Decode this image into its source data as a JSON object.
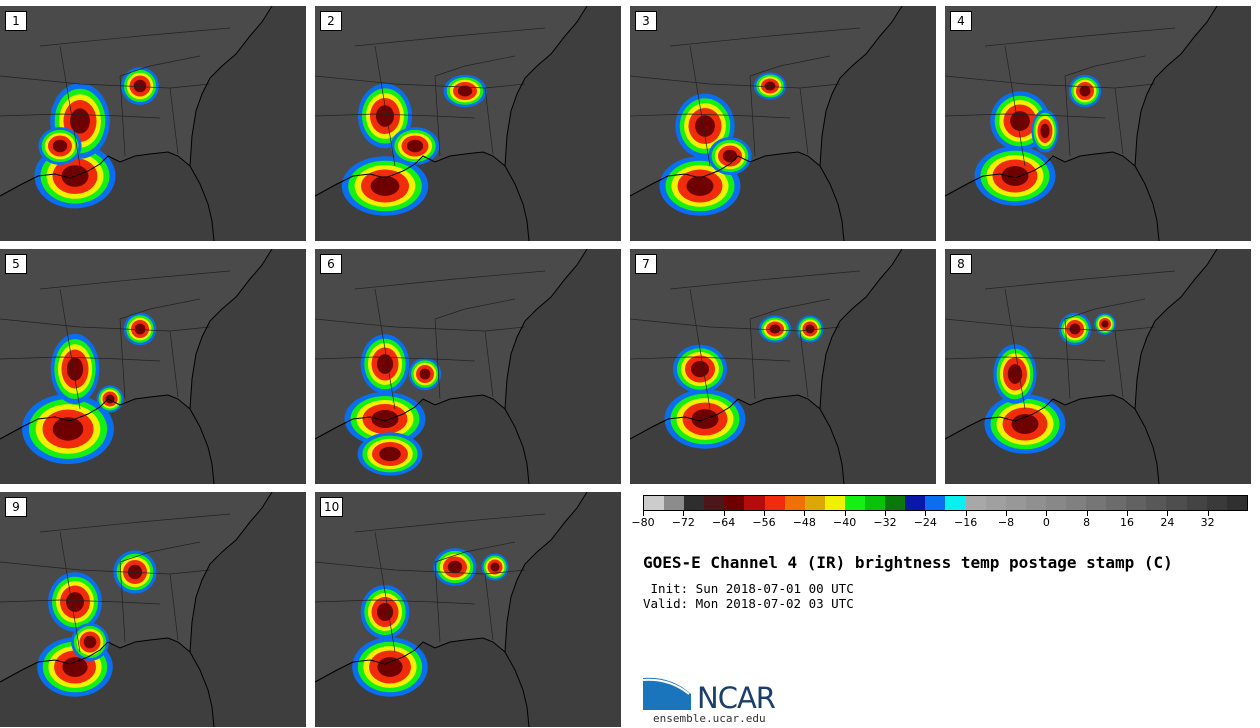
{
  "panels": [
    {
      "label": "1"
    },
    {
      "label": "2"
    },
    {
      "label": "3"
    },
    {
      "label": "4"
    },
    {
      "label": "5"
    },
    {
      "label": "6"
    },
    {
      "label": "7"
    },
    {
      "label": "8"
    },
    {
      "label": "9"
    },
    {
      "label": "10"
    }
  ],
  "colorbar": {
    "colors": [
      "#cccccc",
      "#8c8c8c",
      "#2e2e2e",
      "#4a1818",
      "#6e0000",
      "#b40c0c",
      "#f02c0c",
      "#f07008",
      "#dca808",
      "#f0f000",
      "#14f014",
      "#0ac20a",
      "#0a780a",
      "#0a18a8",
      "#0a6ef0",
      "#0af0f0",
      "#a8a8a8",
      "#a0a0a0",
      "#989898",
      "#909090",
      "#888888",
      "#808080",
      "#767676",
      "#6c6c6c",
      "#626262",
      "#585858",
      "#4e4e4e",
      "#444444",
      "#3a3a3a",
      "#303030"
    ],
    "tick_labels": [
      "−80",
      "−72",
      "−64",
      "−56",
      "−48",
      "−40",
      "−32",
      "−24",
      "−16",
      "−8",
      "0",
      "8",
      "16",
      "24",
      "32"
    ]
  },
  "title": "GOES-E Channel 4 (IR) brightness temp postage stamp (C)",
  "init": " Init: Sun 2018-07-01 00 UTC",
  "valid": "Valid: Mon 2018-07-02 03 UTC",
  "logo": {
    "text": "NCAR",
    "url": "ensemble.ucar.edu",
    "color": "#1b75bc"
  }
}
